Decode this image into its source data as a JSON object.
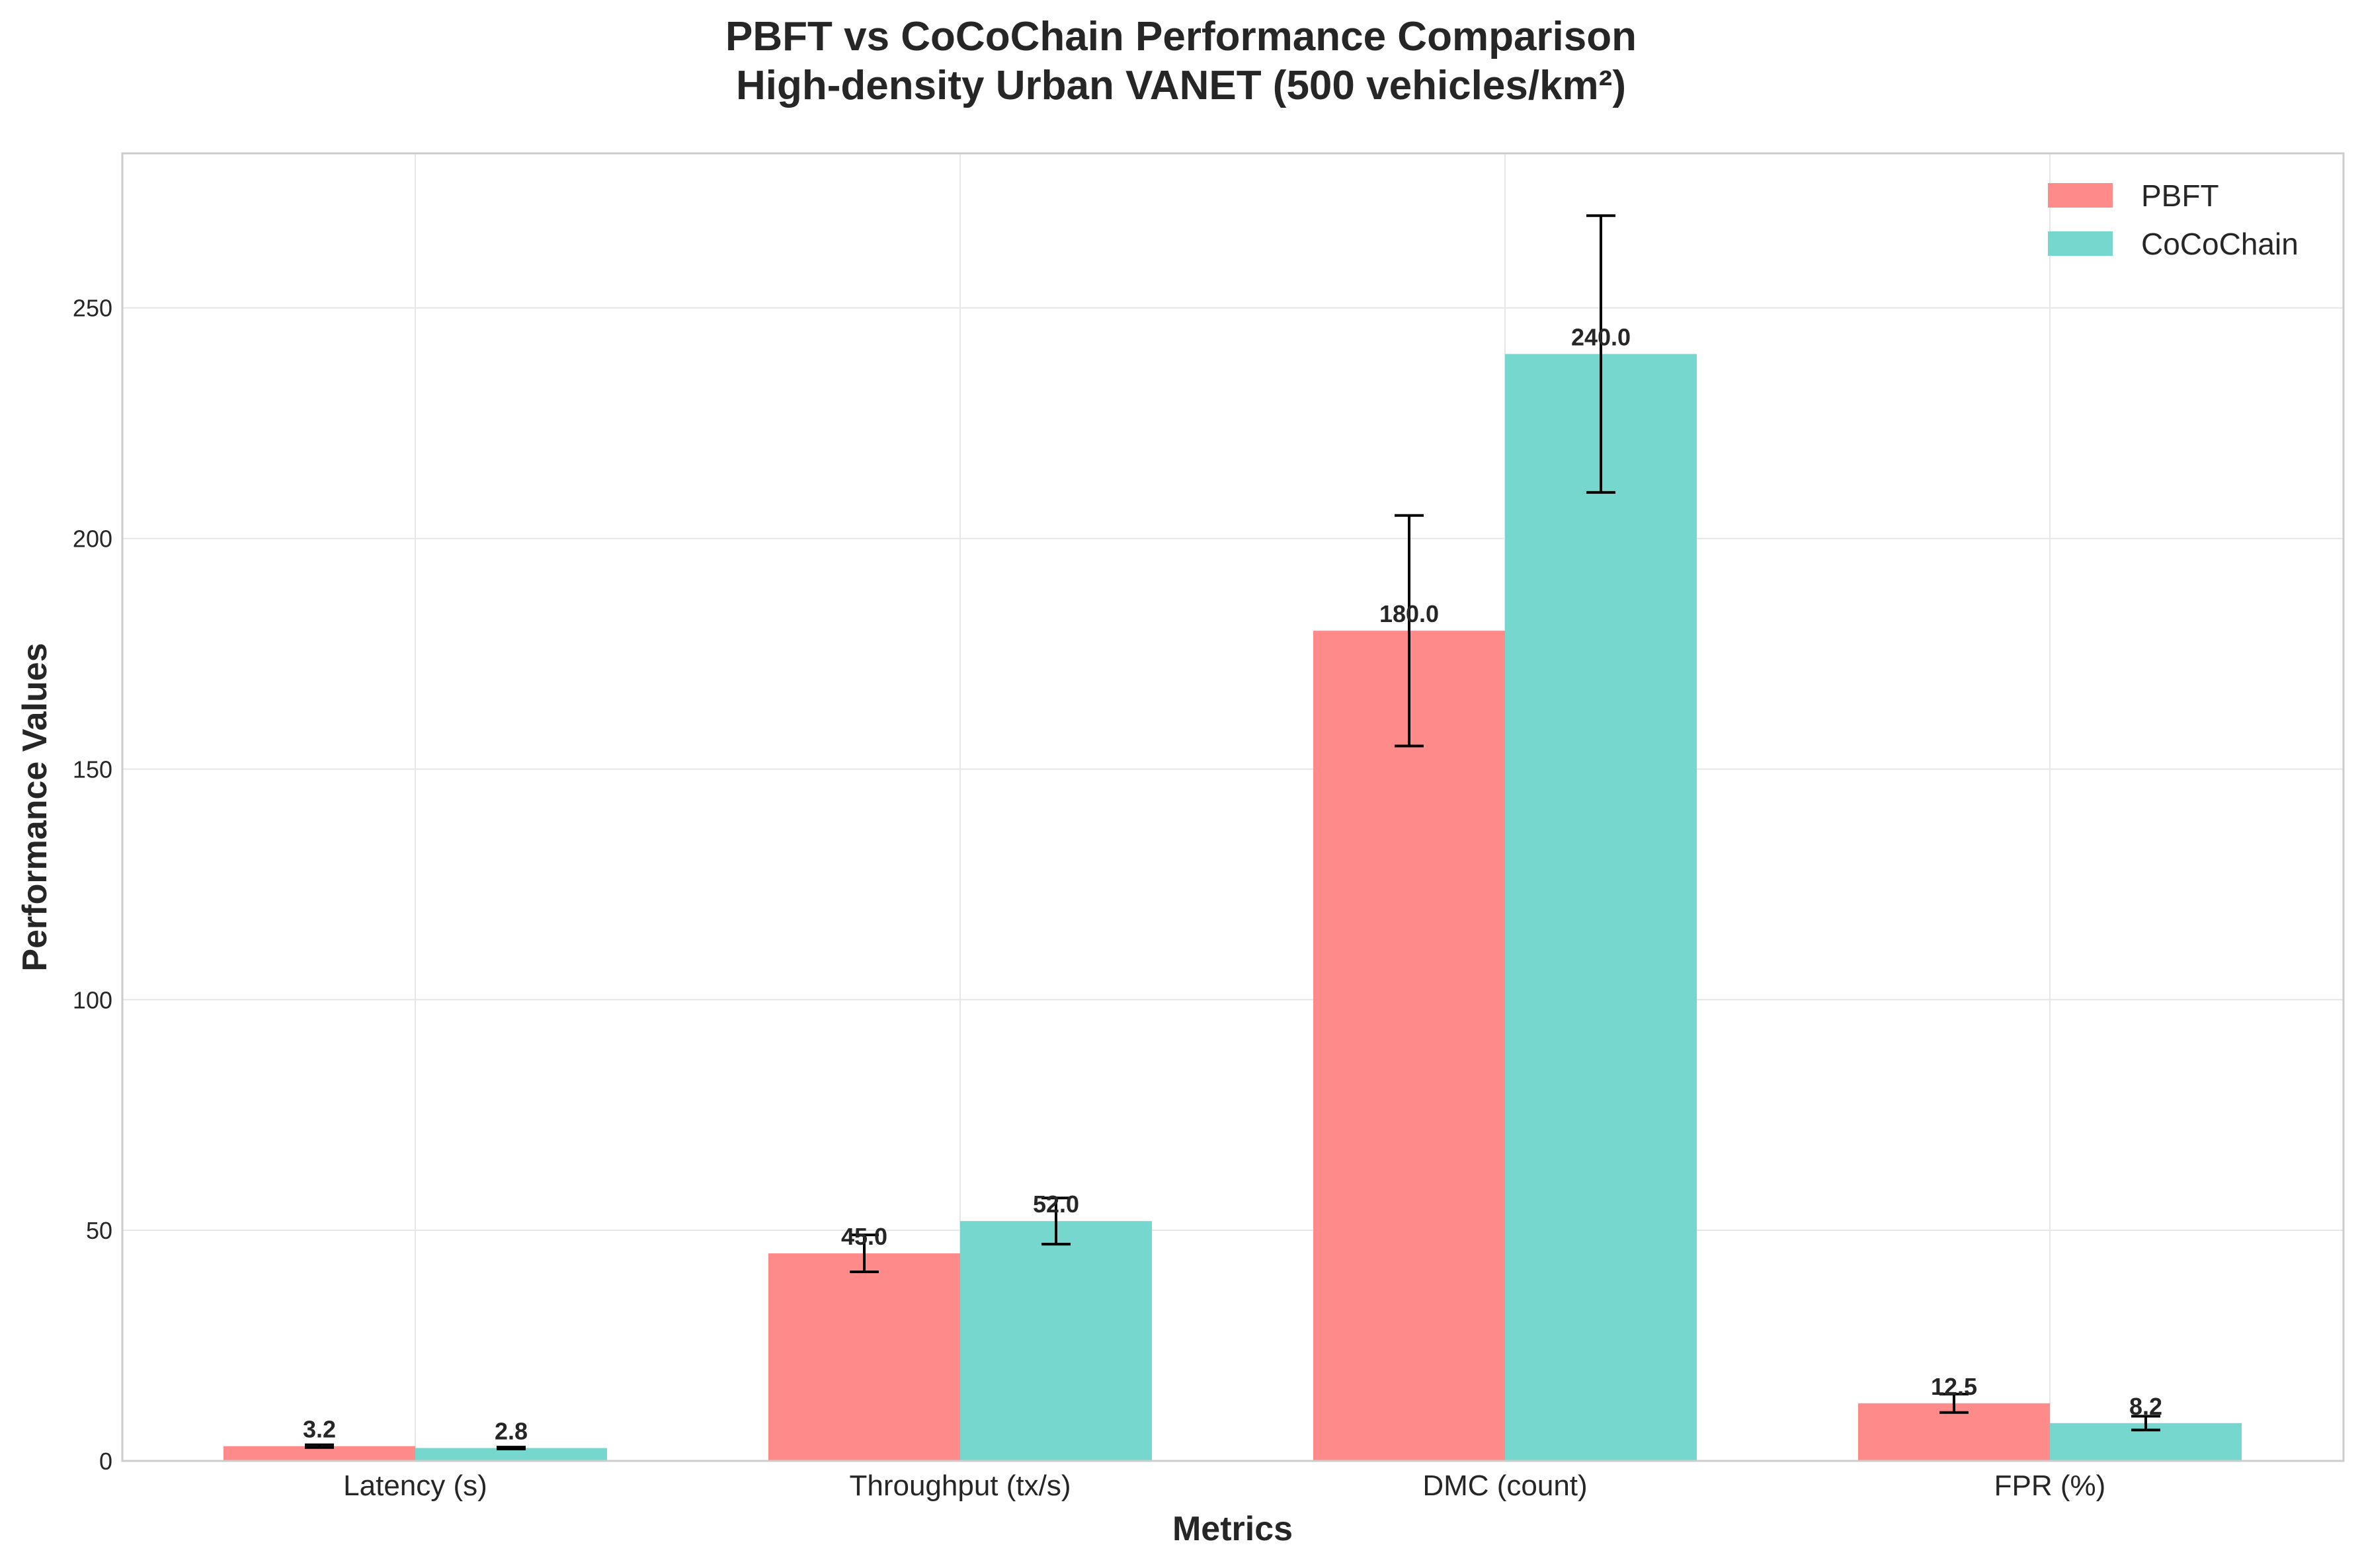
{
  "chart_data": {
    "type": "bar",
    "title": "PBFT vs CoCoChain Performance Comparison",
    "subtitle": "High-density Urban VANET (500 vehicles/km²)",
    "xlabel": "Metrics",
    "ylabel": "Performance Values",
    "categories": [
      "Latency (s)",
      "Throughput (tx/s)",
      "DMC (count)",
      "FPR (%)"
    ],
    "series": [
      {
        "name": "PBFT",
        "color": "#ff8a8a",
        "values": [
          3.2,
          45.0,
          180.0,
          12.5
        ],
        "errors": [
          0.3,
          4.0,
          25.0,
          2.0
        ],
        "labels": [
          "3.2",
          "45.0",
          "180.0",
          "12.5"
        ]
      },
      {
        "name": "CoCoChain",
        "color": "#76d7cf",
        "values": [
          2.8,
          52.0,
          240.0,
          8.2
        ],
        "errors": [
          0.2,
          5.0,
          30.0,
          1.5
        ],
        "labels": [
          "2.8",
          "52.0",
          "240.0",
          "8.2"
        ]
      }
    ],
    "yticks": [
      0,
      50,
      100,
      150,
      200,
      250
    ],
    "ytick_labels": [
      "0",
      "50",
      "100",
      "150",
      "200",
      "250"
    ],
    "ylim": [
      0,
      283.5
    ],
    "grid": true,
    "legend_position": "top-right"
  }
}
